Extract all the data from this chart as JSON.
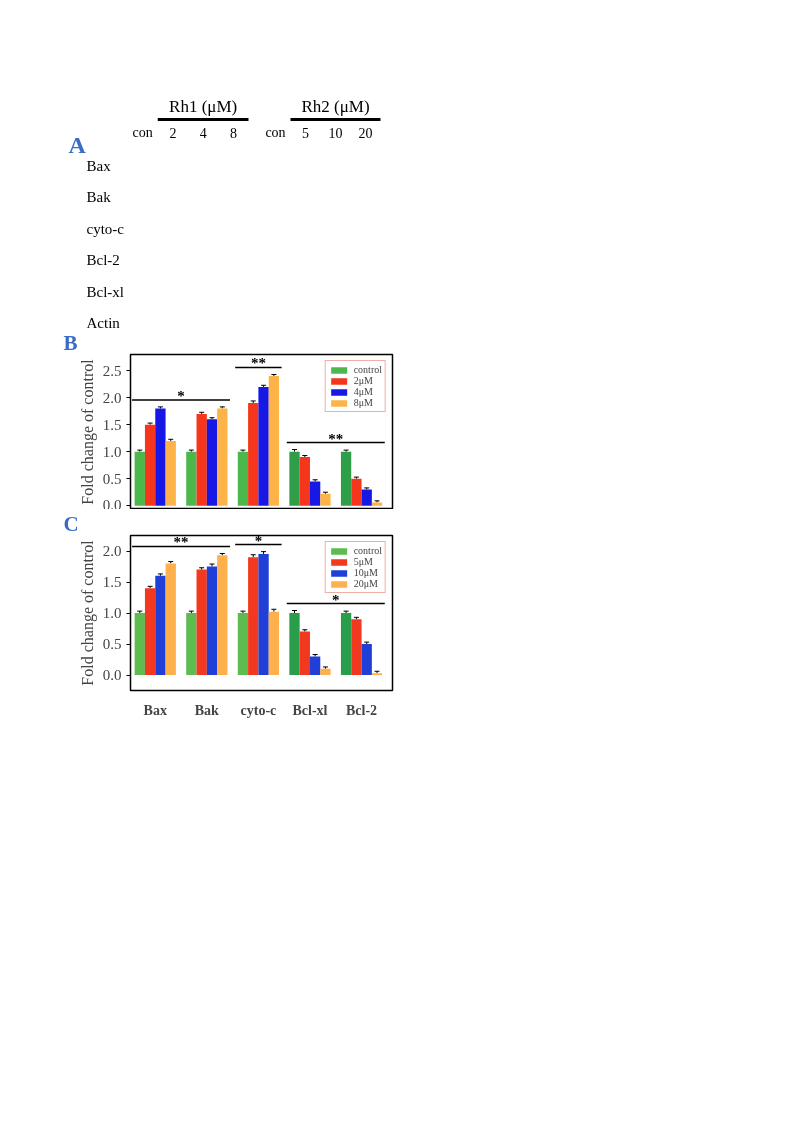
{
  "chart_data": [
    {
      "type": "other",
      "title": "A",
      "annotations": [
        "Rh1 (μM)",
        "con",
        "2",
        "4",
        "8",
        "Rh2 (μM)",
        "con",
        "5",
        "10",
        "20",
        "Bax",
        "Bak",
        "cyto-c",
        "Bcl-2",
        "Bcl-xl",
        "Actin"
      ]
    },
    {
      "type": "bar",
      "title": "B",
      "ylabel": "Fold change of control",
      "categories": [
        null,
        null,
        null,
        null,
        null
      ],
      "ylim": [
        -0.07,
        2.8
      ],
      "yticks": [
        {
          "value": 0,
          "label": "0.0"
        },
        0.5,
        {
          "value": 1,
          "label": "1.0"
        },
        1.5,
        {
          "value": 2,
          "label": "2.0"
        },
        2.5
      ],
      "tick_labels": "y",
      "legend": "top right",
      "annotations": [
        "*",
        "**",
        "**"
      ],
      "series": [
        {
          "name": "control",
          "colors": [
            "#4cb84c",
            "#4cb84c",
            "#4cb84c",
            "#2e9e48",
            "#2e9e48"
          ],
          "values": [
            1.0,
            1.0,
            1.0,
            1.0,
            1.0
          ],
          "errors": [
            [
              1.0,
              1.03
            ],
            [
              1.0,
              1.03
            ],
            [
              1.0,
              1.03
            ],
            [
              1.0,
              1.04
            ],
            [
              1.0,
              1.03
            ]
          ]
        },
        {
          "name": "2μM",
          "color": "#f5361c",
          "values": [
            1.5,
            1.7,
            1.9,
            0.9,
            0.5
          ],
          "errors": [
            [
              1.5,
              1.53
            ],
            [
              1.7,
              1.73
            ],
            [
              1.9,
              1.94
            ],
            [
              0.9,
              0.93
            ],
            [
              0.5,
              0.53
            ]
          ]
        },
        {
          "name": "4μM",
          "color": "#1717e6",
          "values": [
            1.8,
            1.6,
            2.2,
            0.45,
            0.3
          ],
          "errors": [
            [
              1.8,
              1.83
            ],
            [
              1.6,
              1.63
            ],
            [
              2.2,
              2.23
            ],
            [
              0.45,
              0.48
            ],
            [
              0.3,
              0.33
            ]
          ]
        },
        {
          "name": "8μM",
          "color": "#fdb347",
          "values": [
            1.2,
            1.8,
            2.4,
            0.22,
            0.06
          ],
          "errors": [
            [
              1.2,
              1.23
            ],
            [
              1.8,
              1.83
            ],
            [
              2.4,
              2.43
            ],
            [
              0.22,
              0.25
            ],
            [
              0.06,
              0.09
            ]
          ]
        }
      ]
    },
    {
      "type": "bar",
      "title": "C",
      "ylabel": "Fold change of control",
      "categories": [
        "Bax",
        "Bak",
        "cyto-c",
        "Bcl-xl",
        "Bcl-2"
      ],
      "ylim": [
        -0.25,
        2.25
      ],
      "yticks": [
        {
          "value": 0,
          "label": "0.0"
        },
        0.5,
        {
          "value": 1,
          "label": "1.0"
        },
        1.5,
        {
          "value": 2,
          "label": "2.0"
        }
      ],
      "legend": "top right",
      "annotations": [
        "**",
        "*",
        "*"
      ],
      "series": [
        {
          "name": "control",
          "colors": [
            "#5dbb4f",
            "#5dbb4f",
            "#5dbb4f",
            "#2a9d4a",
            "#2a9d4a"
          ],
          "values": [
            1.0,
            1.0,
            1.0,
            1.0,
            1.0
          ],
          "errors": [
            [
              1.0,
              1.03
            ],
            [
              1.0,
              1.03
            ],
            [
              1.0,
              1.03
            ],
            [
              1.0,
              1.04
            ],
            [
              1.0,
              1.03
            ]
          ]
        },
        {
          "name": "5μM",
          "color": "#f2391f",
          "values": [
            1.4,
            1.7,
            1.9,
            0.7,
            0.9
          ],
          "errors": [
            [
              1.4,
              1.43
            ],
            [
              1.7,
              1.73
            ],
            [
              1.9,
              1.94
            ],
            [
              0.7,
              0.73
            ],
            [
              0.9,
              0.93
            ]
          ]
        },
        {
          "name": "10μM",
          "color": "#1f3fd6",
          "values": [
            1.6,
            1.75,
            1.95,
            0.3,
            0.5
          ],
          "errors": [
            [
              1.6,
              1.63
            ],
            [
              1.75,
              1.79
            ],
            [
              1.95,
              1.99
            ],
            [
              0.3,
              0.33
            ],
            [
              0.5,
              0.53
            ]
          ]
        },
        {
          "name": "20μM",
          "color": "#fdb04c",
          "values": [
            1.8,
            1.93,
            1.02,
            0.1,
            0.03
          ],
          "errors": [
            [
              1.8,
              1.83
            ],
            [
              1.93,
              1.96
            ],
            [
              1.02,
              1.06
            ],
            [
              0.1,
              0.13
            ],
            [
              0.03,
              0.06
            ]
          ]
        }
      ]
    }
  ]
}
